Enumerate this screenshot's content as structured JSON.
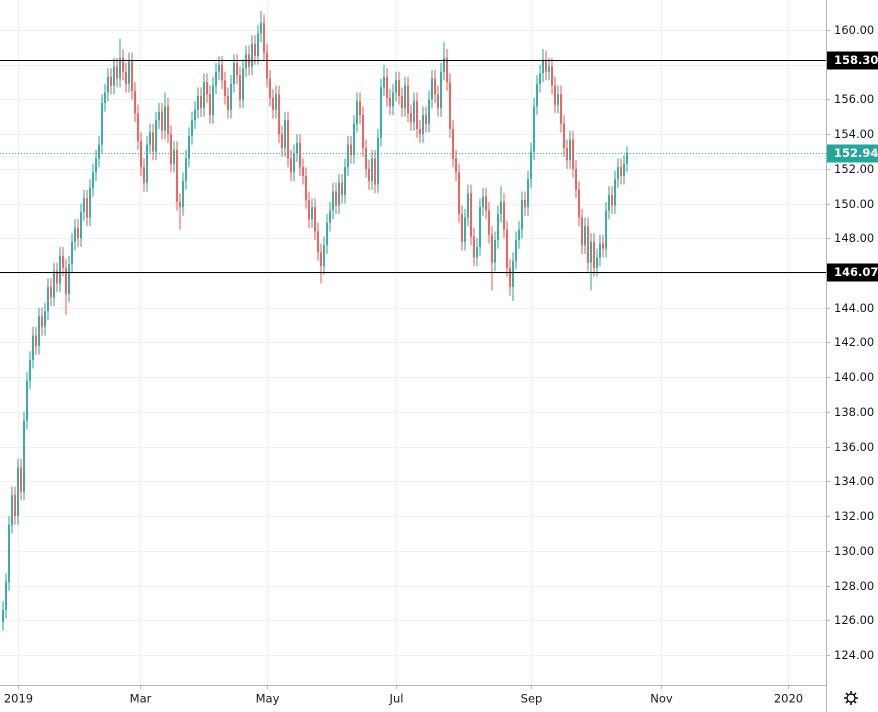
{
  "chart_data": {
    "type": "candlestick",
    "up_color": "#26a69a",
    "down_color": "#ef5350",
    "grid": true,
    "xlim": [
      -1,
      274.33
    ],
    "ylim": [
      122.27,
      161.73
    ],
    "xticks": [
      {
        "value": 5,
        "label": "2019"
      },
      {
        "value": 45.7,
        "label": "Mar"
      },
      {
        "value": 88,
        "label": "May"
      },
      {
        "value": 131,
        "label": "Jul"
      },
      {
        "value": 176,
        "label": "Sep"
      },
      {
        "value": 219.3,
        "label": "Nov"
      },
      {
        "value": 261.7,
        "label": "2020"
      }
    ],
    "yticks": [
      {
        "value": 124,
        "label": "124.00"
      },
      {
        "value": 126,
        "label": "126.00"
      },
      {
        "value": 128,
        "label": "128.00"
      },
      {
        "value": 130,
        "label": "130.00"
      },
      {
        "value": 132,
        "label": "132.00"
      },
      {
        "value": 134,
        "label": "134.00"
      },
      {
        "value": 136,
        "label": "136.00"
      },
      {
        "value": 138,
        "label": "138.00"
      },
      {
        "value": 140,
        "label": "140.00"
      },
      {
        "value": 142,
        "label": "142.00"
      },
      {
        "value": 144,
        "label": "144.00"
      },
      {
        "value": 146,
        "label": "146.00"
      },
      {
        "value": 148,
        "label": "148.00"
      },
      {
        "value": 150,
        "label": "150.00"
      },
      {
        "value": 152,
        "label": "152.00"
      },
      {
        "value": 154,
        "label": "154.00"
      },
      {
        "value": 156,
        "label": "156.00"
      },
      {
        "value": 158,
        "label": "158.00"
      },
      {
        "value": 160,
        "label": "160.00"
      }
    ],
    "horizontal_lines": [
      {
        "value": 158.3,
        "label": "158.30",
        "color": "#000000"
      },
      {
        "value": 146.07,
        "label": "146.07",
        "color": "#000000"
      }
    ],
    "last_price": 152.94,
    "last_price_color": "#26a69a",
    "open": [
      125.9,
      126.6,
      128.2,
      131.5,
      133.2,
      132.0,
      134.8,
      133.4,
      137.5,
      139.8,
      141.0,
      142.4,
      141.8,
      143.5,
      142.9,
      143.8,
      145.2,
      144.6,
      146.1,
      145.4,
      147.0,
      146.3,
      144.8,
      146.5,
      147.8,
      148.6,
      148.0,
      149.5,
      150.3,
      149.2,
      150.9,
      151.8,
      152.6,
      153.4,
      155.8,
      156.4,
      157.3,
      156.8,
      157.9,
      157.2,
      158.4,
      157.6,
      156.9,
      158.2,
      156.5,
      155.2,
      153.6,
      152.1,
      151.2,
      153.4,
      154.1,
      153.0,
      154.8,
      155.3,
      154.2,
      155.6,
      154.0,
      152.3,
      153.1,
      150.1,
      149.8,
      151.3,
      152.6,
      153.9,
      154.8,
      155.4,
      156.2,
      155.5,
      157.0,
      156.3,
      155.1,
      156.8,
      157.6,
      158.0,
      157.1,
      156.2,
      155.4,
      156.9,
      158.1,
      157.4,
      156.0,
      157.8,
      158.6,
      157.9,
      159.2,
      158.5,
      159.8,
      160.4,
      158.7,
      157.2,
      156.1,
      155.4,
      156.3,
      154.0,
      153.2,
      154.8,
      152.6,
      151.8,
      152.9,
      153.5,
      152.1,
      151.6,
      150.2,
      149.1,
      149.8,
      148.4,
      147.2,
      146.4,
      147.6,
      148.9,
      149.6,
      150.7,
      149.9,
      151.2,
      150.5,
      152.1,
      153.4,
      152.8,
      154.6,
      155.9,
      155.1,
      153.2,
      152.0,
      151.3,
      152.6,
      151.1,
      153.8,
      156.7,
      157.3,
      156.1,
      155.6,
      156.4,
      157.1,
      156.2,
      155.5,
      156.8,
      155.2,
      154.7,
      155.9,
      154.3,
      154.0,
      155.1,
      154.6,
      156.0,
      157.2,
      156.3,
      155.5,
      157.6,
      158.4,
      157.0,
      154.3,
      152.6,
      151.8,
      149.4,
      147.8,
      149.2,
      150.6,
      148.1,
      146.9,
      147.5,
      149.8,
      150.4,
      149.6,
      148.2,
      146.6,
      147.9,
      149.4,
      150.1,
      148.5,
      146.3,
      145.2,
      146.7,
      147.9,
      148.5,
      150.2,
      149.8,
      151.4,
      153.0,
      155.6,
      156.9,
      157.5,
      158.3,
      157.6,
      157.9,
      156.8,
      155.7,
      156.3,
      154.6,
      153.2,
      152.5,
      153.7,
      152.0,
      150.8,
      149.2,
      147.6,
      148.7,
      146.6,
      147.8,
      146.3,
      146.9,
      147.7,
      147.4,
      149.6,
      150.5,
      149.9,
      151.4,
      152.1,
      151.6,
      152.3
    ],
    "high": [
      127.1,
      128.7,
      132.0,
      133.7,
      133.7,
      135.3,
      135.3,
      138.0,
      140.3,
      141.5,
      142.9,
      142.9,
      144.0,
      144.0,
      144.3,
      145.7,
      145.7,
      146.6,
      146.6,
      147.5,
      147.5,
      146.8,
      147.0,
      148.3,
      149.1,
      149.1,
      150.0,
      150.8,
      150.8,
      151.4,
      152.3,
      153.1,
      153.9,
      156.3,
      156.9,
      157.8,
      157.8,
      158.4,
      158.4,
      159.5,
      158.9,
      158.1,
      158.7,
      158.7,
      157.0,
      155.7,
      154.1,
      152.6,
      153.9,
      154.6,
      154.6,
      155.3,
      155.8,
      155.8,
      156.4,
      156.1,
      154.5,
      153.6,
      153.6,
      150.6,
      151.8,
      153.1,
      154.4,
      155.3,
      155.9,
      156.7,
      156.7,
      157.5,
      157.5,
      156.8,
      157.3,
      158.1,
      158.5,
      158.5,
      157.6,
      156.7,
      157.4,
      158.6,
      158.6,
      157.9,
      158.3,
      159.1,
      159.1,
      159.7,
      159.7,
      160.3,
      161.1,
      160.9,
      159.2,
      157.7,
      156.6,
      156.8,
      156.8,
      154.5,
      155.3,
      155.3,
      153.1,
      153.4,
      154.0,
      154.0,
      152.6,
      152.1,
      150.7,
      150.3,
      150.3,
      148.9,
      147.7,
      148.1,
      149.4,
      150.1,
      151.2,
      151.2,
      151.7,
      151.7,
      152.6,
      153.9,
      153.9,
      155.1,
      156.4,
      156.4,
      155.6,
      153.7,
      152.5,
      153.1,
      153.1,
      154.3,
      157.2,
      158.0,
      157.8,
      156.6,
      156.9,
      157.6,
      157.6,
      156.7,
      157.3,
      157.3,
      155.7,
      156.4,
      156.4,
      154.8,
      155.6,
      155.6,
      156.5,
      157.7,
      157.7,
      156.8,
      158.1,
      159.3,
      158.9,
      157.5,
      154.8,
      153.1,
      152.3,
      149.9,
      149.7,
      151.1,
      151.1,
      148.6,
      148.0,
      150.3,
      150.9,
      150.9,
      150.1,
      148.7,
      148.4,
      149.9,
      151.0,
      150.6,
      149.0,
      146.8,
      147.2,
      148.4,
      149.0,
      150.7,
      150.7,
      151.9,
      153.5,
      156.1,
      157.4,
      158.0,
      158.9,
      158.8,
      158.4,
      158.4,
      157.3,
      156.8,
      156.8,
      155.1,
      153.7,
      154.2,
      154.2,
      152.5,
      151.3,
      149.7,
      149.2,
      149.2,
      148.3,
      148.3,
      147.4,
      148.2,
      148.2,
      150.1,
      151.0,
      151.0,
      151.9,
      152.6,
      152.6,
      152.8,
      153.3
    ],
    "low": [
      125.4,
      126.1,
      127.7,
      131.0,
      131.5,
      131.5,
      132.9,
      132.9,
      137.0,
      139.3,
      140.5,
      141.3,
      141.3,
      142.4,
      142.4,
      143.3,
      144.1,
      144.1,
      144.9,
      144.9,
      145.8,
      143.6,
      144.3,
      146.0,
      147.3,
      147.5,
      147.5,
      149.0,
      148.7,
      148.7,
      150.4,
      151.3,
      152.1,
      152.9,
      155.3,
      155.9,
      156.3,
      156.3,
      156.7,
      156.7,
      157.1,
      156.4,
      156.4,
      156.0,
      154.7,
      153.1,
      151.6,
      150.7,
      150.7,
      152.9,
      152.5,
      152.5,
      154.3,
      153.7,
      153.7,
      153.5,
      151.8,
      151.8,
      149.6,
      148.5,
      149.3,
      150.8,
      152.1,
      153.4,
      154.3,
      154.9,
      155.0,
      155.0,
      155.8,
      154.6,
      154.6,
      156.3,
      157.1,
      156.6,
      155.7,
      154.9,
      154.9,
      156.4,
      156.9,
      155.5,
      155.5,
      157.3,
      157.4,
      157.4,
      158.0,
      158.0,
      159.3,
      158.2,
      156.7,
      155.6,
      154.9,
      154.9,
      153.5,
      152.7,
      152.7,
      152.1,
      151.3,
      151.3,
      152.4,
      151.6,
      151.1,
      149.7,
      148.6,
      148.6,
      147.9,
      146.7,
      145.4,
      145.9,
      147.1,
      148.4,
      149.1,
      149.4,
      149.4,
      150.0,
      150.0,
      151.6,
      152.3,
      152.3,
      154.1,
      154.6,
      152.7,
      151.5,
      150.8,
      150.8,
      150.6,
      150.6,
      153.3,
      156.2,
      155.6,
      155.1,
      155.1,
      155.9,
      155.7,
      155.0,
      155.0,
      154.7,
      154.2,
      154.2,
      153.8,
      153.5,
      153.5,
      154.1,
      154.1,
      155.5,
      155.8,
      155.0,
      155.0,
      157.1,
      156.5,
      153.8,
      152.1,
      151.3,
      148.9,
      147.3,
      147.3,
      148.7,
      147.6,
      146.4,
      146.4,
      147.0,
      149.3,
      149.1,
      147.7,
      145.0,
      146.1,
      147.4,
      148.9,
      148.0,
      145.8,
      144.7,
      144.4,
      146.2,
      147.4,
      148.0,
      149.3,
      149.3,
      150.9,
      152.5,
      155.1,
      156.4,
      157.0,
      157.1,
      157.1,
      156.3,
      155.2,
      155.2,
      154.1,
      152.7,
      152.0,
      152.0,
      151.5,
      150.3,
      148.7,
      147.1,
      147.1,
      146.1,
      145.0,
      145.8,
      145.8,
      146.4,
      146.9,
      146.9,
      149.1,
      149.4,
      149.4,
      150.9,
      151.1,
      151.1,
      151.8
    ],
    "close": [
      126.6,
      128.2,
      131.5,
      133.2,
      132.0,
      134.8,
      133.4,
      137.5,
      139.8,
      141.0,
      142.4,
      141.8,
      143.5,
      142.9,
      143.8,
      145.2,
      144.6,
      146.1,
      145.4,
      147.0,
      146.3,
      144.8,
      146.5,
      147.8,
      148.6,
      148.0,
      149.5,
      150.3,
      149.2,
      150.9,
      151.8,
      152.6,
      153.4,
      155.8,
      156.4,
      157.3,
      156.8,
      157.9,
      157.2,
      158.4,
      157.6,
      156.9,
      158.2,
      156.5,
      155.2,
      153.6,
      152.1,
      151.2,
      153.4,
      154.1,
      153.0,
      154.8,
      155.3,
      154.2,
      155.6,
      154.0,
      152.3,
      153.1,
      150.1,
      149.8,
      151.3,
      152.6,
      153.9,
      154.8,
      155.4,
      156.2,
      155.5,
      157.0,
      156.3,
      155.1,
      156.8,
      157.6,
      158.0,
      157.1,
      156.2,
      155.4,
      156.9,
      158.1,
      157.4,
      156.0,
      157.8,
      158.6,
      157.9,
      159.2,
      158.5,
      159.8,
      160.4,
      158.7,
      157.2,
      156.1,
      155.4,
      156.3,
      154.0,
      153.2,
      154.8,
      152.6,
      151.8,
      152.9,
      153.5,
      152.1,
      151.6,
      150.2,
      149.1,
      149.8,
      148.4,
      147.2,
      146.4,
      147.6,
      148.9,
      149.6,
      150.7,
      149.9,
      151.2,
      150.5,
      152.1,
      153.4,
      152.8,
      154.6,
      155.9,
      155.1,
      153.2,
      152.0,
      151.3,
      152.6,
      151.1,
      153.8,
      156.7,
      157.3,
      156.1,
      155.6,
      156.4,
      157.1,
      156.2,
      155.5,
      156.8,
      155.2,
      154.7,
      155.9,
      154.3,
      154.0,
      155.1,
      154.6,
      156.0,
      157.2,
      156.3,
      155.5,
      157.6,
      158.4,
      157.0,
      154.3,
      152.6,
      151.8,
      149.4,
      147.8,
      149.2,
      150.6,
      148.1,
      146.9,
      147.5,
      149.8,
      150.4,
      149.6,
      148.2,
      146.6,
      147.9,
      149.4,
      150.1,
      148.5,
      146.3,
      145.2,
      146.7,
      147.9,
      148.5,
      150.2,
      149.8,
      151.4,
      153.0,
      155.6,
      156.9,
      157.5,
      158.3,
      157.6,
      157.9,
      156.8,
      155.7,
      156.3,
      154.6,
      153.2,
      152.5,
      153.7,
      152.0,
      150.8,
      149.2,
      147.6,
      148.7,
      146.6,
      147.8,
      146.3,
      146.9,
      147.7,
      147.4,
      149.6,
      150.5,
      149.9,
      151.4,
      152.1,
      151.6,
      152.3,
      152.94
    ]
  }
}
